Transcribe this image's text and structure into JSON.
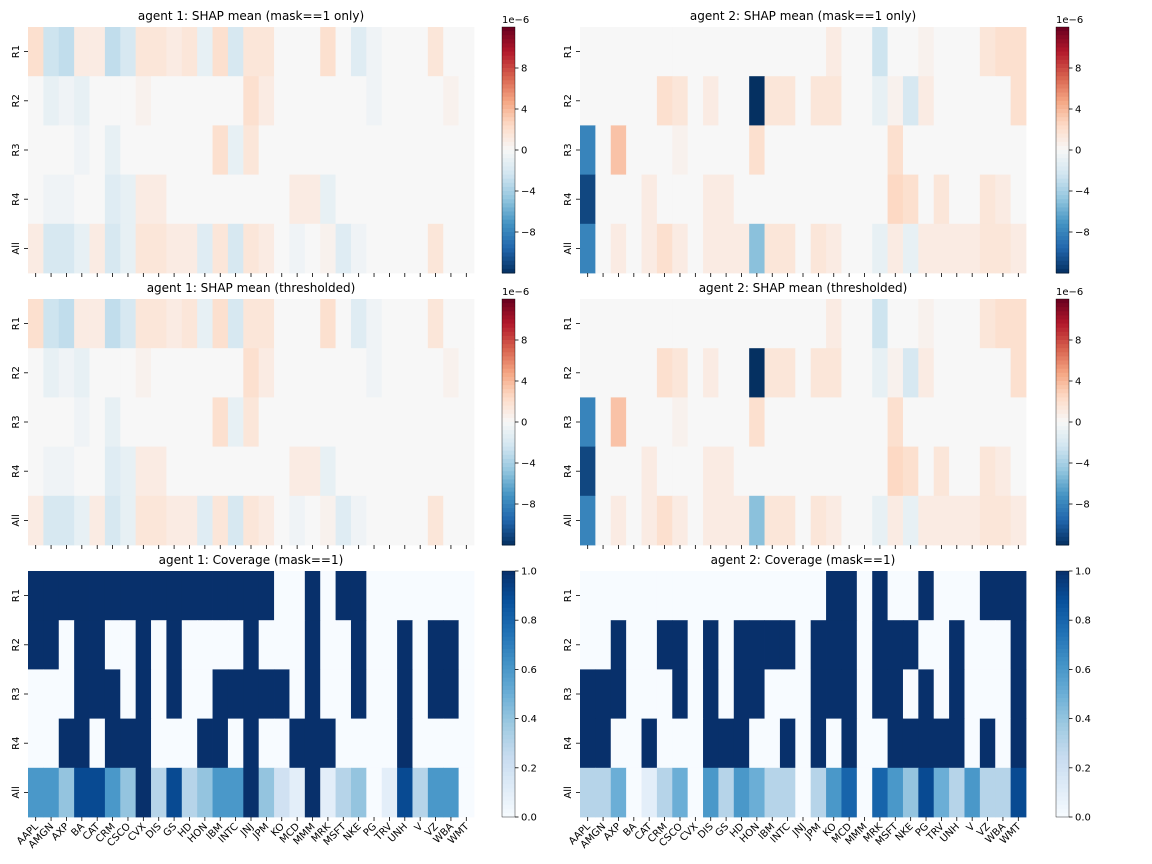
{
  "chart_data": [
    {
      "type": "heatmap",
      "panel": "agent1_shap_mask",
      "title": "agent 1: SHAP mean (mask==1 only)",
      "rows": [
        "R1",
        "R2",
        "R3",
        "R4",
        "All"
      ],
      "columns": [
        "AAPL",
        "AMGN",
        "AXP",
        "BA",
        "CAT",
        "CRM",
        "CSCO",
        "CVX",
        "DIS",
        "GS",
        "HD",
        "HON",
        "IBM",
        "INTC",
        "JNJ",
        "JPM",
        "KO",
        "MCD",
        "MMM",
        "MRK",
        "MSFT",
        "NKE",
        "PG",
        "TRV",
        "UNH",
        "V",
        "VZ",
        "WBA",
        "WMT"
      ],
      "values_scale": "1e-6",
      "values": [
        [
          2.0,
          -2.5,
          -3.0,
          1.0,
          1.0,
          -3.0,
          -2.0,
          1.5,
          1.5,
          1.0,
          1.5,
          -1.0,
          2.0,
          -2.0,
          1.5,
          1.5,
          0,
          0,
          0,
          2.0,
          0,
          -1.5,
          -0.5,
          0,
          0,
          0,
          1.5,
          0,
          0
        ],
        [
          0,
          -1.0,
          -0.5,
          -1.0,
          0,
          0,
          0,
          0.5,
          0,
          0,
          0,
          0,
          0,
          0,
          2.0,
          1.0,
          0,
          0,
          0,
          0,
          0,
          0,
          -0.5,
          0,
          0,
          0,
          0,
          0.5,
          0
        ],
        [
          0,
          0,
          0,
          -0.5,
          0,
          -1.0,
          0,
          0,
          0,
          0,
          0,
          0,
          2.0,
          -1.0,
          1.5,
          0,
          0,
          0,
          0,
          0,
          0,
          0,
          0,
          0,
          0,
          0,
          0,
          0,
          0
        ],
        [
          0,
          -0.5,
          -0.5,
          0,
          0,
          -1.5,
          -1.0,
          1.0,
          1.0,
          0,
          0,
          0,
          0,
          0,
          0,
          0,
          0,
          1.0,
          1.0,
          -1.0,
          0,
          0,
          0,
          0,
          0,
          0,
          0,
          0,
          0
        ],
        [
          1.0,
          -2.0,
          -2.0,
          -1.0,
          1.0,
          -2.0,
          -1.0,
          1.5,
          1.5,
          1.0,
          1.0,
          -1.5,
          1.5,
          -2.0,
          1.5,
          1.0,
          0,
          -0.5,
          0,
          0.5,
          -1.5,
          -0.5,
          0,
          0,
          0,
          0,
          1.5,
          0,
          0
        ]
      ],
      "colormap": "RdBu_r",
      "vmin": -12,
      "vmax": 12,
      "colorbar_ticks": [
        "8",
        "4",
        "0",
        "−4",
        "−8"
      ],
      "colorbar_exponent": "1e−6"
    },
    {
      "type": "heatmap",
      "panel": "agent2_shap_mask",
      "title": "agent 2: SHAP mean (mask==1 only)",
      "rows": [
        "R1",
        "R2",
        "R3",
        "R4",
        "All"
      ],
      "columns": [
        "AAPL",
        "AMGN",
        "AXP",
        "BA",
        "CAT",
        "CRM",
        "CSCO",
        "CVX",
        "DIS",
        "GS",
        "HD",
        "HON",
        "IBM",
        "INTC",
        "JNJ",
        "JPM",
        "KO",
        "MCD",
        "MMM",
        "MRK",
        "MSFT",
        "NKE",
        "PG",
        "TRV",
        "UNH",
        "V",
        "VZ",
        "WBA",
        "WMT"
      ],
      "values_scale": "1e-6",
      "values": [
        [
          0,
          0,
          0,
          0,
          0,
          0,
          0,
          0,
          0,
          0,
          0,
          0,
          0,
          0,
          0,
          0,
          1.0,
          0,
          0,
          -2.5,
          0,
          0,
          0.5,
          0,
          0,
          0,
          1.5,
          2.0,
          2.0
        ],
        [
          0,
          0,
          0,
          0,
          0,
          2.0,
          1.5,
          0,
          1.0,
          0,
          0,
          -12,
          1.5,
          1.5,
          0,
          1.5,
          1.5,
          0,
          0,
          -1.0,
          0.5,
          -2.0,
          1.0,
          0,
          0,
          0,
          0,
          0,
          2.0
        ],
        [
          -8,
          0,
          3.5,
          0,
          0,
          0,
          0.5,
          0,
          0,
          0,
          0,
          2.0,
          0,
          0,
          0,
          0,
          0,
          0,
          0,
          0,
          2.0,
          0,
          0,
          0,
          0,
          0,
          0,
          0,
          0
        ],
        [
          -11,
          0,
          0,
          0,
          1.0,
          0,
          0,
          0,
          1.0,
          1.0,
          0,
          0,
          0,
          0,
          0,
          0,
          0,
          0,
          0,
          0,
          2.5,
          2.0,
          0,
          1.5,
          0,
          0,
          1.5,
          1.0,
          0
        ],
        [
          -8,
          0,
          1.0,
          0,
          1.0,
          2.0,
          1.0,
          0,
          1.0,
          1.0,
          1.0,
          -5,
          1.5,
          1.5,
          0,
          1.5,
          1.0,
          0,
          0,
          -1.0,
          1.0,
          -1.0,
          1.0,
          1.0,
          1.0,
          1.0,
          1.5,
          1.5,
          1.0
        ]
      ],
      "colormap": "RdBu_r",
      "vmin": -12,
      "vmax": 12,
      "colorbar_ticks": [
        "8",
        "4",
        "0",
        "−4",
        "−8"
      ],
      "colorbar_exponent": "1e−6"
    },
    {
      "type": "heatmap",
      "panel": "agent1_shap_threshold",
      "title": "agent 1: SHAP mean (thresholded)",
      "rows": [
        "R1",
        "R2",
        "R3",
        "R4",
        "All"
      ],
      "columns": [
        "AAPL",
        "AMGN",
        "AXP",
        "BA",
        "CAT",
        "CRM",
        "CSCO",
        "CVX",
        "DIS",
        "GS",
        "HD",
        "HON",
        "IBM",
        "INTC",
        "JNJ",
        "JPM",
        "KO",
        "MCD",
        "MMM",
        "MRK",
        "MSFT",
        "NKE",
        "PG",
        "TRV",
        "UNH",
        "V",
        "VZ",
        "WBA",
        "WMT"
      ],
      "values_scale": "1e-6",
      "values": [
        [
          2.0,
          -2.5,
          -3.0,
          1.0,
          1.0,
          -3.0,
          -2.0,
          1.5,
          1.5,
          1.0,
          1.5,
          -1.0,
          2.0,
          -2.0,
          1.5,
          1.5,
          0,
          0,
          0,
          2.0,
          0,
          -1.5,
          -0.5,
          0,
          0,
          0,
          1.5,
          0,
          0
        ],
        [
          0,
          -1.0,
          -0.5,
          -1.0,
          0,
          0,
          0,
          0.5,
          0,
          0,
          0,
          0,
          0,
          0,
          2.0,
          1.0,
          0,
          0,
          0,
          0,
          0,
          0,
          -0.5,
          0,
          0,
          0,
          0,
          0.5,
          0
        ],
        [
          0,
          0,
          0,
          -0.5,
          0,
          -1.0,
          0,
          0,
          0,
          0,
          0,
          0,
          2.0,
          -1.0,
          1.5,
          0,
          0,
          0,
          0,
          0,
          0,
          0,
          0,
          0,
          0,
          0,
          0,
          0,
          0
        ],
        [
          0,
          -0.5,
          -0.5,
          0,
          0,
          -1.5,
          -1.0,
          1.0,
          1.0,
          0,
          0,
          0,
          0,
          0,
          0,
          0,
          0,
          1.0,
          1.0,
          -1.0,
          0,
          0,
          0,
          0,
          0,
          0,
          0,
          0,
          0
        ],
        [
          1.0,
          -2.0,
          -2.0,
          -1.0,
          1.0,
          -2.0,
          -1.0,
          1.5,
          1.5,
          1.0,
          1.0,
          -1.5,
          1.5,
          -2.0,
          1.5,
          1.0,
          0,
          -0.5,
          0,
          0.5,
          -1.5,
          -0.5,
          0,
          0,
          0,
          0,
          1.5,
          0,
          0
        ]
      ],
      "colormap": "RdBu_r",
      "vmin": -12,
      "vmax": 12,
      "colorbar_ticks": [
        "8",
        "4",
        "0",
        "−4",
        "−8"
      ],
      "colorbar_exponent": "1e−6"
    },
    {
      "type": "heatmap",
      "panel": "agent2_shap_threshold",
      "title": "agent 2: SHAP mean (thresholded)",
      "rows": [
        "R1",
        "R2",
        "R3",
        "R4",
        "All"
      ],
      "columns": [
        "AAPL",
        "AMGN",
        "AXP",
        "BA",
        "CAT",
        "CRM",
        "CSCO",
        "CVX",
        "DIS",
        "GS",
        "HD",
        "HON",
        "IBM",
        "INTC",
        "JNJ",
        "JPM",
        "KO",
        "MCD",
        "MMM",
        "MRK",
        "MSFT",
        "NKE",
        "PG",
        "TRV",
        "UNH",
        "V",
        "VZ",
        "WBA",
        "WMT"
      ],
      "values_scale": "1e-6",
      "values": [
        [
          0,
          0,
          0,
          0,
          0,
          0,
          0,
          0,
          0,
          0,
          0,
          0,
          0,
          0,
          0,
          0,
          1.0,
          0,
          0,
          -2.5,
          0,
          0,
          0.5,
          0,
          0,
          0,
          1.5,
          2.0,
          2.0
        ],
        [
          0,
          0,
          0,
          0,
          0,
          2.0,
          1.5,
          0,
          1.0,
          0,
          0,
          -12,
          1.5,
          1.5,
          0,
          1.5,
          1.5,
          0,
          0,
          -1.0,
          0.5,
          -2.0,
          1.0,
          0,
          0,
          0,
          0,
          0,
          2.0
        ],
        [
          -8,
          0,
          3.5,
          0,
          0,
          0,
          0.5,
          0,
          0,
          0,
          0,
          2.0,
          0,
          0,
          0,
          0,
          0,
          0,
          0,
          0,
          2.0,
          0,
          0,
          0,
          0,
          0,
          0,
          0,
          0
        ],
        [
          -11,
          0,
          0,
          0,
          1.0,
          0,
          0,
          0,
          1.0,
          1.0,
          0,
          0,
          0,
          0,
          0,
          0,
          0,
          0,
          0,
          0,
          2.5,
          2.0,
          0,
          1.5,
          0,
          0,
          1.5,
          1.0,
          0
        ],
        [
          -8,
          0,
          1.0,
          0,
          1.0,
          2.0,
          1.0,
          0,
          1.0,
          1.0,
          1.0,
          -5,
          1.5,
          1.5,
          0,
          1.5,
          1.0,
          0,
          0,
          -1.0,
          1.0,
          -1.0,
          1.0,
          1.0,
          1.0,
          1.0,
          1.5,
          1.5,
          1.0
        ]
      ],
      "colormap": "RdBu_r",
      "vmin": -12,
      "vmax": 12,
      "colorbar_ticks": [
        "8",
        "4",
        "0",
        "−4",
        "−8"
      ],
      "colorbar_exponent": "1e−6"
    },
    {
      "type": "heatmap",
      "panel": "agent1_coverage",
      "title": "agent 1: Coverage (mask==1)",
      "rows": [
        "R1",
        "R2",
        "R3",
        "R4",
        "All"
      ],
      "columns": [
        "AAPL",
        "AMGN",
        "AXP",
        "BA",
        "CAT",
        "CRM",
        "CSCO",
        "CVX",
        "DIS",
        "GS",
        "HD",
        "HON",
        "IBM",
        "INTC",
        "JNJ",
        "JPM",
        "KO",
        "MCD",
        "MMM",
        "MRK",
        "MSFT",
        "NKE",
        "PG",
        "TRV",
        "UNH",
        "V",
        "VZ",
        "WBA",
        "WMT"
      ],
      "values": [
        [
          1,
          1,
          1,
          1,
          1,
          1,
          1,
          1,
          1,
          1,
          1,
          1,
          1,
          1,
          1,
          1,
          0,
          0,
          1,
          0,
          1,
          1,
          0,
          0,
          0,
          0,
          0,
          0,
          0
        ],
        [
          1,
          1,
          0,
          1,
          1,
          0,
          0,
          1,
          0,
          1,
          0,
          0,
          0,
          0,
          1,
          0,
          0,
          0,
          1,
          0,
          0,
          1,
          0,
          0,
          1,
          0,
          1,
          1,
          0
        ],
        [
          0,
          0,
          0,
          1,
          1,
          1,
          0,
          1,
          0,
          1,
          0,
          0,
          1,
          1,
          1,
          1,
          1,
          0,
          1,
          0,
          0,
          1,
          0,
          0,
          1,
          0,
          1,
          1,
          0
        ],
        [
          0,
          0,
          1,
          1,
          0,
          1,
          1,
          1,
          0,
          0,
          0,
          1,
          1,
          0,
          1,
          0,
          0,
          1,
          1,
          1,
          0,
          0,
          0,
          0,
          1,
          0,
          0,
          0,
          0
        ],
        [
          0.6,
          0.6,
          0.4,
          0.9,
          0.9,
          0.6,
          0.4,
          1.0,
          0.3,
          0.9,
          0.3,
          0.4,
          0.6,
          0.6,
          1.0,
          0.4,
          0.2,
          0.1,
          1.0,
          0.1,
          0.3,
          0.4,
          0.0,
          0.1,
          0.9,
          0.3,
          0.6,
          0.6,
          0.0
        ]
      ],
      "colormap": "Blues",
      "vmin": 0,
      "vmax": 1,
      "colorbar_ticks": [
        "1.0",
        "0.8",
        "0.6",
        "0.4",
        "0.2",
        "0.0"
      ]
    },
    {
      "type": "heatmap",
      "panel": "agent2_coverage",
      "title": "agent 2: Coverage (mask==1)",
      "rows": [
        "R1",
        "R2",
        "R3",
        "R4",
        "All"
      ],
      "columns": [
        "AAPL",
        "AMGN",
        "AXP",
        "BA",
        "CAT",
        "CRM",
        "CSCO",
        "CVX",
        "DIS",
        "GS",
        "HD",
        "HON",
        "IBM",
        "INTC",
        "JNJ",
        "JPM",
        "KO",
        "MCD",
        "MMM",
        "MRK",
        "MSFT",
        "NKE",
        "PG",
        "TRV",
        "UNH",
        "V",
        "VZ",
        "WBA",
        "WMT"
      ],
      "values": [
        [
          0,
          0,
          0,
          0,
          0,
          0,
          0,
          0,
          0,
          0,
          0,
          0,
          0,
          0,
          0,
          0,
          1,
          1,
          0,
          1,
          0,
          0,
          1,
          0,
          0,
          0,
          1,
          1,
          1
        ],
        [
          0,
          0,
          1,
          0,
          0,
          1,
          1,
          0,
          1,
          0,
          1,
          1,
          1,
          1,
          0,
          1,
          1,
          1,
          0,
          1,
          1,
          1,
          0,
          0,
          1,
          0,
          0,
          0,
          1
        ],
        [
          1,
          1,
          1,
          0,
          0,
          0,
          1,
          0,
          1,
          0,
          1,
          1,
          0,
          0,
          0,
          1,
          1,
          1,
          0,
          1,
          1,
          0,
          1,
          0,
          1,
          0,
          0,
          0,
          1
        ],
        [
          1,
          1,
          0,
          0,
          1,
          0,
          0,
          0,
          1,
          1,
          1,
          0,
          0,
          1,
          0,
          1,
          0,
          1,
          0,
          0,
          1,
          1,
          1,
          1,
          1,
          0,
          1,
          0,
          1
        ],
        [
          0.3,
          0.3,
          0.5,
          0.0,
          0.1,
          0.3,
          0.5,
          0.0,
          0.6,
          0.3,
          0.6,
          0.5,
          0.3,
          0.3,
          0.0,
          0.3,
          0.6,
          0.8,
          0.0,
          0.8,
          0.6,
          0.4,
          0.9,
          0.5,
          0.3,
          0.6,
          0.3,
          0.3,
          0.9
        ]
      ],
      "colormap": "Blues",
      "vmin": 0,
      "vmax": 1,
      "colorbar_ticks": [
        "1.0",
        "0.8",
        "0.6",
        "0.4",
        "0.2",
        "0.0"
      ]
    }
  ]
}
